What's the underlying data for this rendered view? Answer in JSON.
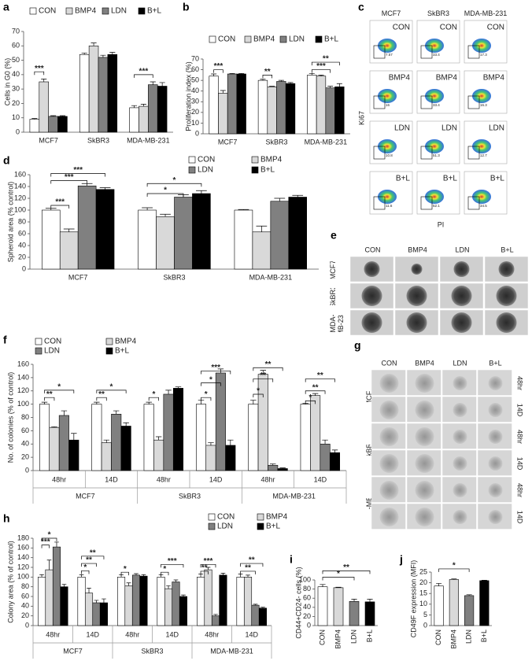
{
  "chart_data": [
    {
      "panel": "a",
      "type": "bar",
      "categories": [
        "MCF7",
        "SkBR3",
        "MDA-MB-231"
      ],
      "series": [
        {
          "name": "CON",
          "color": "#ffffff",
          "values": [
            9,
            54,
            17
          ],
          "errors": [
            0.5,
            1,
            1.5
          ]
        },
        {
          "name": "BMP4",
          "color": "#d9d9d9",
          "values": [
            35,
            60,
            18
          ],
          "errors": [
            2,
            2,
            1.5
          ]
        },
        {
          "name": "LDN",
          "color": "#808080",
          "values": [
            11,
            52,
            33
          ],
          "errors": [
            0.5,
            1.5,
            2
          ]
        },
        {
          "name": "B+L",
          "color": "#000000",
          "values": [
            11,
            54,
            32
          ],
          "errors": [
            0.5,
            1.5,
            2.5
          ]
        }
      ],
      "ylim": [
        0,
        70
      ],
      "yticks": [
        0,
        10,
        20,
        30,
        40,
        50,
        60,
        70
      ],
      "ylabel": "Cells in G0 (%)",
      "annotations": [
        {
          "label": "***",
          "category": 0,
          "from": 0,
          "to": 1,
          "y": 42
        },
        {
          "label": "***",
          "category": 2,
          "from": 0,
          "to": 2,
          "y": 40
        }
      ]
    },
    {
      "panel": "b",
      "type": "bar",
      "categories": [
        "MCF7",
        "SkBR3",
        "MDA-MB-231"
      ],
      "series": [
        {
          "name": "CON",
          "color": "#ffffff",
          "values": [
            54,
            50,
            55
          ],
          "errors": [
            2,
            1,
            1.5
          ]
        },
        {
          "name": "BMP4",
          "color": "#d9d9d9",
          "values": [
            38,
            44,
            54
          ],
          "errors": [
            2.5,
            0.5,
            1
          ]
        },
        {
          "name": "LDN",
          "color": "#808080",
          "values": [
            56,
            49,
            43
          ],
          "errors": [
            0.5,
            1,
            1.5
          ]
        },
        {
          "name": "B+L",
          "color": "#000000",
          "values": [
            56,
            47,
            44
          ],
          "errors": [
            0.5,
            1,
            3
          ]
        }
      ],
      "ylim": [
        0,
        70
      ],
      "yticks": [
        0,
        10,
        20,
        30,
        40,
        50,
        60,
        70
      ],
      "ylabel": "Proliferation index (%)",
      "annotations": [
        {
          "label": "***",
          "category": 0,
          "from": 0,
          "to": 1,
          "y": 60
        },
        {
          "label": "**",
          "category": 1,
          "from": 0,
          "to": 1,
          "y": 55
        },
        {
          "label": "***",
          "category": 2,
          "from": 0,
          "to": 2,
          "y": 60
        },
        {
          "label": "**",
          "category": 2,
          "from": 0,
          "to": 3,
          "y": 67
        }
      ]
    },
    {
      "panel": "d",
      "type": "bar",
      "categories": [
        "MCF7",
        "SkBR3",
        "MDA-MB-231"
      ],
      "series": [
        {
          "name": "CON",
          "color": "#ffffff",
          "values": [
            100,
            100,
            100
          ],
          "errors": [
            3,
            4,
            1
          ]
        },
        {
          "name": "BMP4",
          "color": "#d9d9d9",
          "values": [
            63,
            89,
            63
          ],
          "errors": [
            5,
            4,
            10
          ]
        },
        {
          "name": "LDN",
          "color": "#808080",
          "values": [
            141,
            122,
            115
          ],
          "errors": [
            4,
            4,
            5
          ]
        },
        {
          "name": "B+L",
          "color": "#000000",
          "values": [
            135,
            128,
            122
          ],
          "errors": [
            3,
            5,
            3
          ]
        }
      ],
      "ylim": [
        0,
        160
      ],
      "yticks": [
        0,
        20,
        40,
        60,
        80,
        100,
        120,
        140,
        160
      ],
      "ylabel": "Spheroid area (% control)",
      "annotations": [
        {
          "label": "***",
          "category": 0,
          "from": 0,
          "to": 1,
          "y": 108
        },
        {
          "label": "***",
          "category": 0,
          "from": 0,
          "to": 2,
          "y": 150
        },
        {
          "label": "***",
          "category": 0,
          "from": 0,
          "to": 3,
          "y": 162
        },
        {
          "label": "*",
          "category": 1,
          "from": 0,
          "to": 2,
          "y": 128
        },
        {
          "label": "*",
          "category": 1,
          "from": 0,
          "to": 3,
          "y": 145
        }
      ]
    },
    {
      "panel": "f",
      "type": "bar",
      "categories": [
        "48hr",
        "14D",
        "48hr",
        "14D",
        "48hr",
        "14D"
      ],
      "groups": [
        "MCF7",
        "SkBR3",
        "MDA-MB-231"
      ],
      "series": [
        {
          "name": "CON",
          "color": "#ffffff",
          "values": [
            100,
            100,
            100,
            100,
            100,
            100
          ],
          "errors": [
            3,
            3,
            3,
            6,
            6,
            1
          ]
        },
        {
          "name": "BMP4",
          "color": "#d9d9d9",
          "values": [
            65,
            42,
            46,
            38,
            145,
            113
          ],
          "errors": [
            1,
            4,
            5,
            4,
            6,
            3
          ]
        },
        {
          "name": "LDN",
          "color": "#808080",
          "values": [
            83,
            85,
            115,
            147,
            8,
            40
          ],
          "errors": [
            7,
            5,
            6,
            6,
            2,
            6
          ]
        },
        {
          "name": "B+L",
          "color": "#000000",
          "values": [
            46,
            67,
            124,
            38,
            3,
            27
          ],
          "errors": [
            10,
            5,
            2,
            8,
            1,
            4
          ]
        }
      ],
      "ylim": [
        0,
        160
      ],
      "yticks": [
        0,
        20,
        40,
        60,
        80,
        100,
        120,
        140,
        160
      ],
      "ylabel": "No. of colonies (% of control)",
      "annotations": [
        {
          "label": "**",
          "category": 0,
          "from": 0,
          "to": 1,
          "y": 110
        },
        {
          "label": "*",
          "category": 0,
          "from": 0,
          "to": 3,
          "y": 121
        },
        {
          "label": "**",
          "category": 1,
          "from": 0,
          "to": 1,
          "y": 110
        },
        {
          "label": "*",
          "category": 1,
          "from": 0,
          "to": 3,
          "y": 121
        },
        {
          "label": "*",
          "category": 2,
          "from": 0,
          "to": 1,
          "y": 110
        },
        {
          "label": "*",
          "category": 3,
          "from": 0,
          "to": 1,
          "y": 110
        },
        {
          "label": "*",
          "category": 3,
          "from": 0,
          "to": 2,
          "y": 132
        },
        {
          "label": "***",
          "category": 3,
          "from": 0,
          "to": 3,
          "y": 150
        },
        {
          "label": "*",
          "category": 4,
          "from": 0,
          "to": 1,
          "y": 115
        },
        {
          "label": "**",
          "category": 4,
          "from": 0,
          "to": 2,
          "y": 138
        },
        {
          "label": "**",
          "category": 4,
          "from": 0,
          "to": 3,
          "y": 155
        },
        {
          "label": "*",
          "category": 5,
          "from": 0,
          "to": 1,
          "y": 105
        },
        {
          "label": "**",
          "category": 5,
          "from": 0,
          "to": 2,
          "y": 120
        },
        {
          "label": "**",
          "category": 5,
          "from": 0,
          "to": 3,
          "y": 138
        }
      ]
    },
    {
      "panel": "h",
      "type": "bar",
      "categories": [
        "48hr",
        "14D",
        "48hr",
        "14D",
        "48hr",
        "14D"
      ],
      "groups": [
        "MCF7",
        "SkBR3",
        "MDA-MB-231"
      ],
      "series": [
        {
          "name": "CON",
          "color": "#ffffff",
          "values": [
            100,
            100,
            100,
            100,
            100,
            100
          ],
          "errors": [
            5,
            5,
            5,
            5,
            6,
            6
          ]
        },
        {
          "name": "BMP4",
          "color": "#d9d9d9",
          "values": [
            115,
            67,
            82,
            76,
            115,
            100
          ],
          "errors": [
            20,
            10,
            6,
            6,
            5,
            4
          ]
        },
        {
          "name": "LDN",
          "color": "#808080",
          "values": [
            162,
            47,
            104,
            90,
            20,
            42
          ],
          "errors": [
            10,
            5,
            3,
            4,
            3,
            2
          ]
        },
        {
          "name": "B+L",
          "color": "#000000",
          "values": [
            80,
            47,
            102,
            60,
            104,
            36
          ],
          "errors": [
            5,
            8,
            3,
            3,
            4,
            2
          ]
        }
      ],
      "ylim": [
        0,
        180
      ],
      "yticks": [
        0,
        20,
        40,
        60,
        80,
        100,
        120,
        140,
        160,
        180
      ],
      "ylabel": "Colony area (% of control)",
      "annotations": [
        {
          "label": "***",
          "category": 0,
          "from": 0,
          "to": 1,
          "y": 166
        },
        {
          "label": "*",
          "category": 0,
          "from": 0,
          "to": 2,
          "y": 180
        },
        {
          "label": "*",
          "category": 1,
          "from": 0,
          "to": 1,
          "y": 113
        },
        {
          "label": "**",
          "category": 1,
          "from": 0,
          "to": 2,
          "y": 128
        },
        {
          "label": "**",
          "category": 1,
          "from": 0,
          "to": 3,
          "y": 143
        },
        {
          "label": "*",
          "category": 2,
          "from": 0,
          "to": 1,
          "y": 110
        },
        {
          "label": "*",
          "category": 3,
          "from": 0,
          "to": 1,
          "y": 110
        },
        {
          "label": "***",
          "category": 3,
          "from": 0,
          "to": 3,
          "y": 126
        },
        {
          "label": "**",
          "category": 4,
          "from": 0,
          "to": 1,
          "y": 112
        },
        {
          "label": "***",
          "category": 4,
          "from": 0,
          "to": 2,
          "y": 126
        },
        {
          "label": "**",
          "category": 5,
          "from": 0,
          "to": 2,
          "y": 112
        },
        {
          "label": "**",
          "category": 5,
          "from": 0,
          "to": 3,
          "y": 128
        }
      ]
    },
    {
      "panel": "i",
      "type": "bar",
      "categories": [
        "CON",
        "BMP4",
        "LDN",
        "B+L"
      ],
      "values": [
        85,
        83,
        53,
        52
      ],
      "errors": [
        5,
        1,
        5,
        6
      ],
      "colors": [
        "#ffffff",
        "#d9d9d9",
        "#808080",
        "#000000"
      ],
      "ylim": [
        0,
        100
      ],
      "yticks": [
        0,
        20,
        40,
        60,
        80,
        100
      ],
      "ylabel": "CD44+CD24- cells (%)",
      "annotations": [
        {
          "label": "*",
          "from": 0,
          "to": 2,
          "y": 106
        },
        {
          "label": "**",
          "from": 0,
          "to": 3,
          "y": 120
        }
      ]
    },
    {
      "panel": "j",
      "type": "bar",
      "categories": [
        "CON",
        "BMP4",
        "LDN",
        "B+L"
      ],
      "values": [
        18.5,
        21.5,
        14,
        21
      ],
      "errors": [
        1.2,
        0.3,
        0.4,
        0.2
      ],
      "colors": [
        "#ffffff",
        "#d9d9d9",
        "#808080",
        "#000000"
      ],
      "ylim": [
        0,
        25
      ],
      "yticks": [
        0,
        5,
        10,
        15,
        20,
        25
      ],
      "ylabel": "CD49F expression (MFI)",
      "annotations": [
        {
          "label": "*",
          "from": 0,
          "to": 2,
          "y": 26.5
        }
      ]
    }
  ],
  "images": {
    "c": {
      "panel": "c",
      "columns": [
        "MCF7",
        "SkBR3",
        "MDA-MB-231"
      ],
      "rows": [
        "CON",
        "BMP4",
        "LDN",
        "B+L"
      ],
      "gates": [
        [
          "7.57",
          "33.4",
          "17.3"
        ],
        [
          "16",
          "33.4",
          "16.3"
        ],
        [
          "10.8",
          "51.3",
          "12.7"
        ],
        [
          "11.6",
          "52.1",
          "34.5"
        ]
      ],
      "ylabel": "Ki67",
      "xlabel": "PI"
    },
    "e": {
      "panel": "e",
      "columns": [
        "CON",
        "BMP4",
        "LDN",
        "B+L"
      ],
      "rows": [
        "MCF7",
        "SkBR3",
        "MDA-MB-231"
      ]
    },
    "g": {
      "panel": "g",
      "columns": [
        "CON",
        "BMP4",
        "LDN",
        "B+L"
      ],
      "rows": [
        "MCF7",
        "SkBR3",
        "MDA-MB-231"
      ],
      "timepoints": [
        "48hr",
        "14D"
      ]
    }
  }
}
